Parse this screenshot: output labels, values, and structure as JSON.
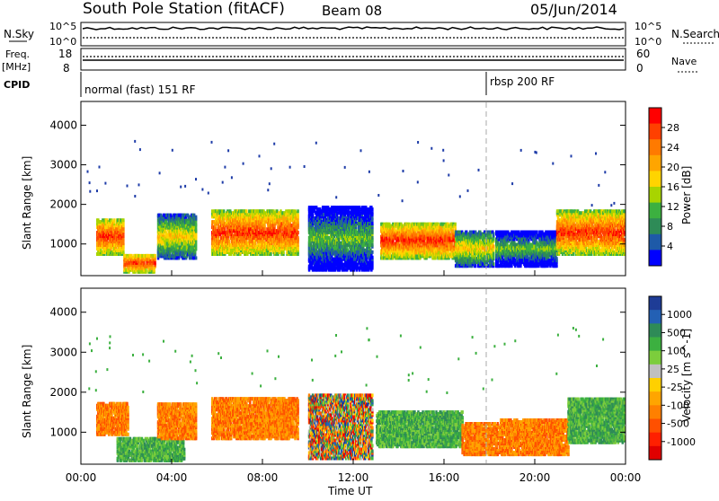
{
  "header": {
    "station": "South Pole Station (fitACF)",
    "beam": "Beam 08",
    "date": "05/Jun/2014"
  },
  "panels": {
    "nsky_label": "N.Sky",
    "nsky_ticks": [
      "10^5",
      "10^0"
    ],
    "nsky_ticks_right": [
      "10^5",
      "10^0"
    ],
    "nsearch_label": "N.Search",
    "freq_label": "Freq.",
    "freq_unit": "[MHz]",
    "freq_ticks": [
      "18",
      "8"
    ],
    "nave_ticks": [
      "60",
      "0"
    ],
    "nave_label": "Nave",
    "cpid_label": "CPID",
    "cpid_modes": [
      "normal (fast) 151 RF",
      "rbsp 200 RF"
    ]
  },
  "colorbars": {
    "power": {
      "label": "Power [dB]",
      "ticks": [
        "28",
        "24",
        "20",
        "16",
        "12",
        "8",
        "4"
      ],
      "colors": [
        "#ff0000",
        "#ff4000",
        "#ff7a00",
        "#ffa500",
        "#ffd400",
        "#a8d400",
        "#3cb040",
        "#2e8b57",
        "#1e5aa8",
        "#0000ff"
      ]
    },
    "velocity": {
      "label": "Velocity [m s^-1]",
      "ticks": [
        "1000",
        "500",
        "100",
        "25",
        "-25",
        "-100",
        "-500",
        "-1000"
      ],
      "colors": [
        "#1e3c96",
        "#2360b4",
        "#2e8b57",
        "#3cb040",
        "#7ccd3c",
        "#c0c0c0",
        "#ffd000",
        "#ffa500",
        "#ff8000",
        "#ff5000",
        "#ff2000",
        "#e00000"
      ]
    }
  },
  "chart_data": [
    {
      "type": "heatmap",
      "name": "Power",
      "ylabel": "Slant Range [km]",
      "yticks": [
        1000,
        2000,
        3000,
        4000
      ],
      "ylim": [
        200,
        4600
      ],
      "xlim_hours": [
        0,
        24
      ],
      "blobs": [
        {
          "t0": 0.6,
          "t1": 1.8,
          "r0": 700,
          "r1": 1600,
          "level": "high"
        },
        {
          "t0": 1.8,
          "t1": 3.2,
          "r0": 250,
          "r1": 700,
          "level": "high"
        },
        {
          "t0": 3.3,
          "t1": 5.0,
          "r0": 600,
          "r1": 1700,
          "level": "mid"
        },
        {
          "t0": 5.7,
          "t1": 9.5,
          "r0": 700,
          "r1": 1800,
          "level": "high"
        },
        {
          "t0": 10.0,
          "t1": 12.8,
          "r0": 300,
          "r1": 1900,
          "level": "low"
        },
        {
          "t0": 13.2,
          "t1": 16.5,
          "r0": 600,
          "r1": 1500,
          "level": "high"
        },
        {
          "t0": 16.5,
          "t1": 18.2,
          "r0": 400,
          "r1": 1300,
          "level": "mid"
        },
        {
          "t0": 18.3,
          "t1": 21.0,
          "r0": 400,
          "r1": 1300,
          "level": "low"
        },
        {
          "t0": 21.0,
          "t1": 24.0,
          "r0": 700,
          "r1": 1800,
          "level": "high"
        }
      ]
    },
    {
      "type": "heatmap",
      "name": "Velocity",
      "ylabel": "Slant Range [km]",
      "yticks": [
        1000,
        2000,
        3000,
        4000
      ],
      "ylim": [
        200,
        4600
      ],
      "xlim_hours": [
        0,
        24
      ],
      "xlabel": "Time UT",
      "xticks": [
        "00:00",
        "04:00",
        "08:00",
        "12:00",
        "16:00",
        "20:00",
        "00:00"
      ],
      "blobs": [
        {
          "t0": 0.6,
          "t1": 2.0,
          "r0": 900,
          "r1": 1700,
          "level": "neg"
        },
        {
          "t0": 1.5,
          "t1": 4.5,
          "r0": 250,
          "r1": 800,
          "level": "green"
        },
        {
          "t0": 3.3,
          "t1": 5.0,
          "r0": 800,
          "r1": 1700,
          "level": "neg"
        },
        {
          "t0": 5.7,
          "t1": 9.5,
          "r0": 800,
          "r1": 1800,
          "level": "neg"
        },
        {
          "t0": 10.0,
          "t1": 12.8,
          "r0": 300,
          "r1": 1900,
          "level": "mix"
        },
        {
          "t0": 13.0,
          "t1": 16.8,
          "r0": 600,
          "r1": 1500,
          "level": "green"
        },
        {
          "t0": 16.8,
          "t1": 18.5,
          "r0": 400,
          "r1": 1200,
          "level": "neg"
        },
        {
          "t0": 18.5,
          "t1": 21.5,
          "r0": 400,
          "r1": 1300,
          "level": "neg"
        },
        {
          "t0": 21.5,
          "t1": 24.0,
          "r0": 700,
          "r1": 1800,
          "level": "green"
        }
      ]
    }
  ]
}
